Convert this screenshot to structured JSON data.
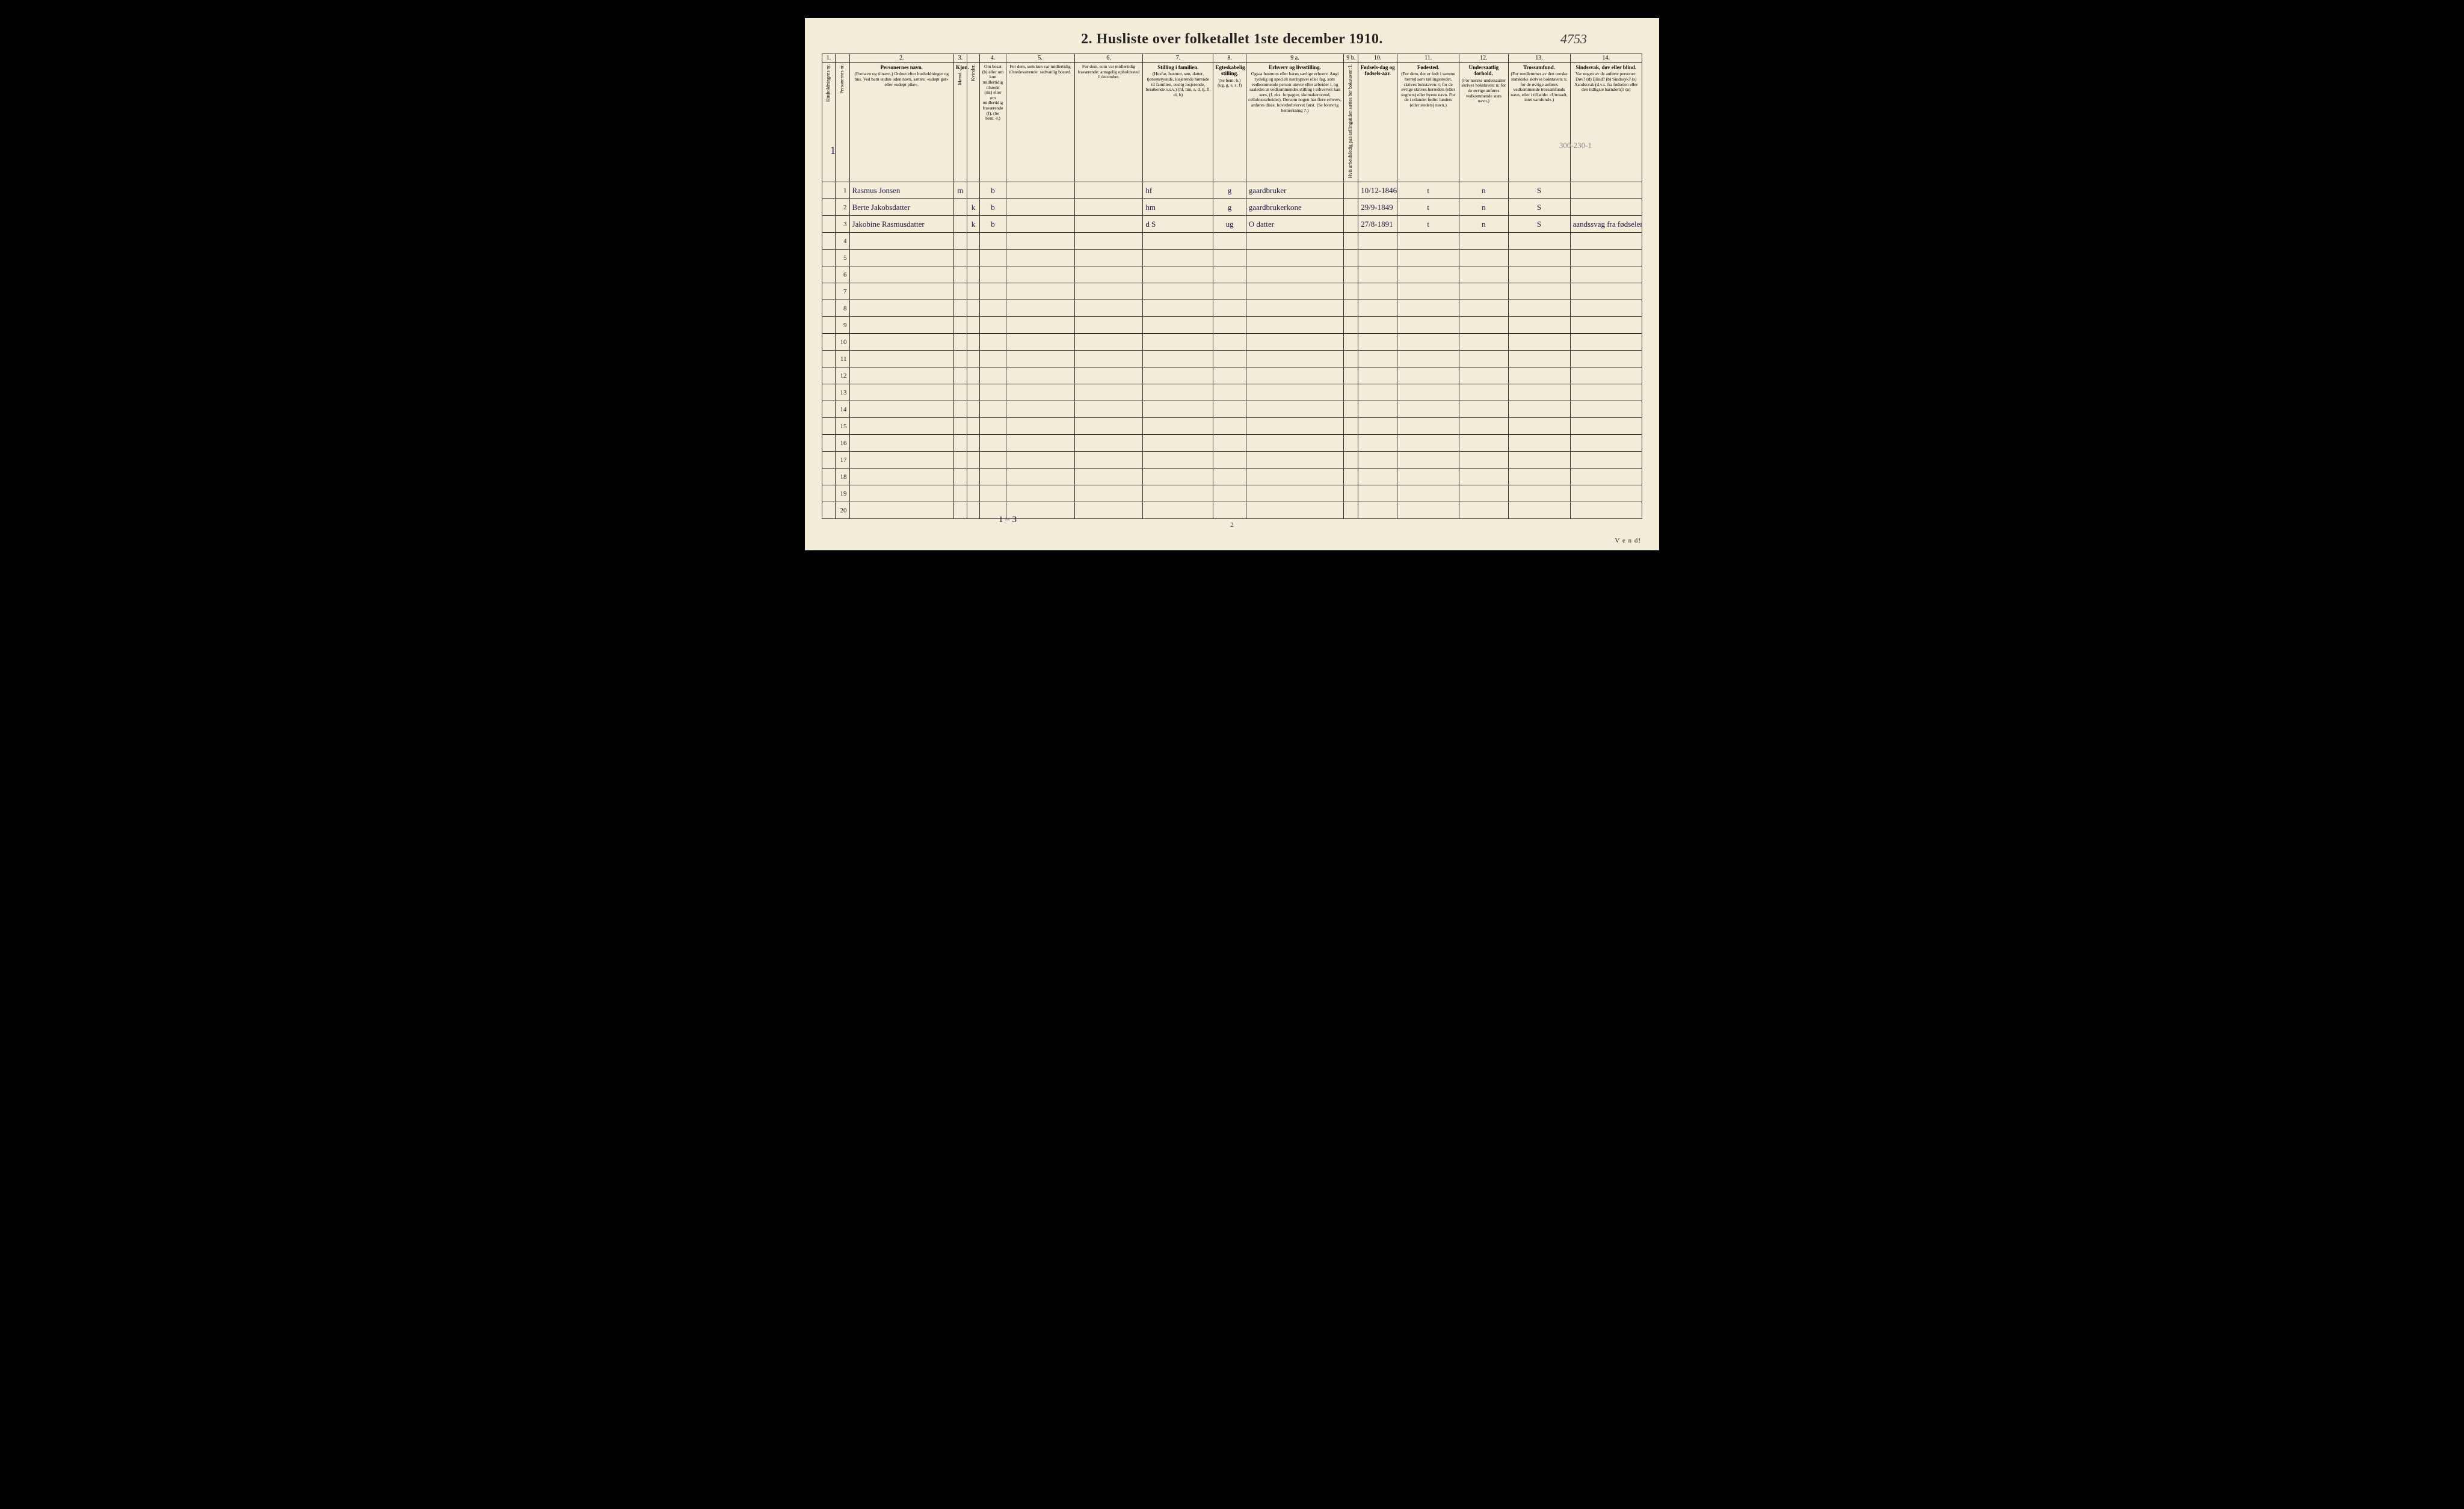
{
  "handnote_top": "4753",
  "title": "2.  Husliste over folketallet 1ste december 1910.",
  "pencil_top_right": "300-230-1",
  "margin_household": "1",
  "colnums": [
    "1.",
    "",
    "2.",
    "3.",
    "",
    "4.",
    "5.",
    "6.",
    "7.",
    "8.",
    "9 a.",
    "9 b.",
    "10.",
    "11.",
    "12.",
    "13.",
    "14."
  ],
  "headers": {
    "c1": {
      "title": "",
      "sub": "Husholdningens nr."
    },
    "c1b": {
      "title": "",
      "sub": "Personernes nr."
    },
    "c2": {
      "title": "Personernes navn.",
      "sub": "(Fornavn og tilnavn.)\nOrdnet efter husholdninger og hus.\nVed barn endnu uden navn, sættes: «udøpt gut» eller «udøpt pike»."
    },
    "c3": {
      "title": "Kjøn.",
      "sub": "Mænd."
    },
    "c3b": {
      "title": "",
      "sub": "Kvinder."
    },
    "c4": {
      "title": "",
      "sub": "Om bosat (b) eller om kun midlertidig tilstede (mt) eller om midlertidig fraværende (f).\n(Se bem. 4.)"
    },
    "c5": {
      "title": "",
      "sub": "For dem, som kun var midlertidig tilstedeværende:\nsedvanlig bosted."
    },
    "c6": {
      "title": "",
      "sub": "For dem, som var midlertidig fraværende:\nantagelig opholdssted 1 december."
    },
    "c7": {
      "title": "Stilling i familien.",
      "sub": "(Husfar, husmor, søn, datter, tjenestetyende, losjerende hørende til familien, enslig losjerende, besøkende o.s.v.)\n(hf, hm, s, d, tj, fl, el, b)"
    },
    "c8": {
      "title": "Egteskabelig stilling.",
      "sub": "(Se bem. 6.)\n(ug, g, e, s, f)"
    },
    "c9a": {
      "title": "Erhverv og livsstilling.",
      "sub": "Ogsaa husmors eller barns særlige erhverv. Angi tydelig og specielt næringsvei eller fag, som vedkommende person utøver eller arbeider i, og saaledes at vedkommendes stilling i erhvervet kan sees, (f. eks. forpagter, skomakersvend, cellulosearbeider). Dersom nogen har flere erhverv, anføres disse, hovederhvervet først.\n(Se forøvrig bemerkning 7.)"
    },
    "c9b": {
      "title": "",
      "sub": "Hvis arbeidsledig paa tællingstiden sættes her bokstaven: l."
    },
    "c10": {
      "title": "Fødsels-dag og fødsels-aar.",
      "sub": ""
    },
    "c11": {
      "title": "Fødested.",
      "sub": "(For dem, der er født i samme herred som tællingsstedet, skrives bokstaven: t; for de øvrige skrives herredets (eller sognets) eller byens navn. For de i utlandet fødte: landets (eller stedets) navn.)"
    },
    "c12": {
      "title": "Undersaatlig forhold.",
      "sub": "(For norske undersaatter skrives bokstaven: n; for de øvrige anføres vedkommende stats navn.)"
    },
    "c13": {
      "title": "Trossamfund.",
      "sub": "(For medlemmer av den norske statskirke skrives bokstaven: s; for de øvrige anføres vedkommende trossamfunds navn, eller i tilfælde: «Uttraadt, intet samfund».)"
    },
    "c14": {
      "title": "Sindssvak, døv eller blind.",
      "sub": "Var nogen av de anførte personer:\nDøv? (d)\nBlind? (b)\nSindssyk? (s)\nAandssvak (d.v.s. fra fødselen eller den tidligste barndom)? (a)"
    }
  },
  "rows": [
    {
      "n": "1",
      "name": "Rasmus Jonsen",
      "m": "m",
      "k": "",
      "res": "b",
      "tmp": "",
      "abs": "",
      "fam": "hf",
      "mar": "g",
      "occ": "gaardbruker",
      "l": "",
      "birth": "10/12-1846",
      "bplace": "t",
      "nat": "n",
      "rel": "S",
      "dis": ""
    },
    {
      "n": "2",
      "name": "Berte Jakobsdatter",
      "m": "",
      "k": "k",
      "res": "b",
      "tmp": "",
      "abs": "",
      "fam": "hm",
      "mar": "g",
      "occ": "gaardbrukerkone",
      "l": "",
      "birth": "29/9-1849",
      "bplace": "t",
      "nat": "n",
      "rel": "S",
      "dis": ""
    },
    {
      "n": "3",
      "name": "Jakobine Rasmusdatter",
      "m": "",
      "k": "k",
      "res": "b",
      "tmp": "",
      "abs": "",
      "fam": "d       S",
      "mar": "ug",
      "occ": "O  datter",
      "l": "",
      "birth": "27/8-1891",
      "bplace": "t",
      "nat": "n",
      "rel": "S",
      "dis": "aandssvag fra fødselen"
    },
    {
      "n": "4"
    },
    {
      "n": "5"
    },
    {
      "n": "6"
    },
    {
      "n": "7"
    },
    {
      "n": "8"
    },
    {
      "n": "9"
    },
    {
      "n": "10"
    },
    {
      "n": "11"
    },
    {
      "n": "12"
    },
    {
      "n": "13"
    },
    {
      "n": "14"
    },
    {
      "n": "15"
    },
    {
      "n": "16"
    },
    {
      "n": "17"
    },
    {
      "n": "18"
    },
    {
      "n": "19"
    },
    {
      "n": "20"
    }
  ],
  "bottom_note": "1 – 3",
  "page_no": "2",
  "vend": "V e n d!",
  "colors": {
    "paper": "#f2ecd9",
    "ink": "#1b1b4a",
    "rule": "#2a2a2a",
    "pencil": "#8a8a8a"
  }
}
